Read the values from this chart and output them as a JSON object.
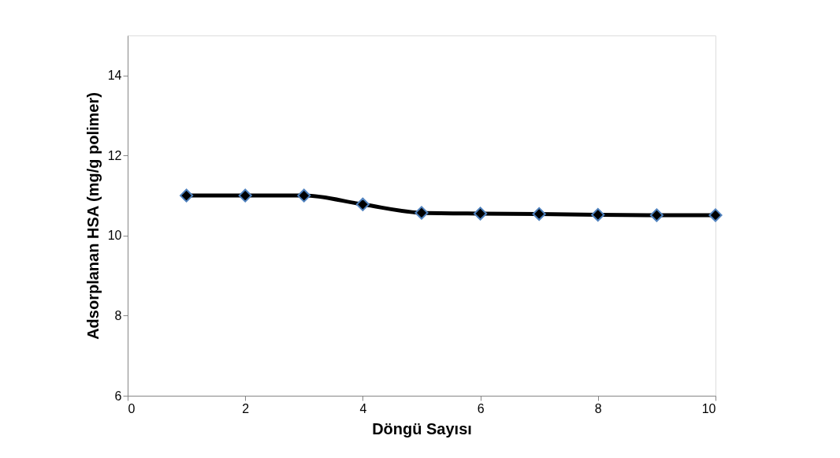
{
  "chart_data": {
    "type": "line",
    "xlabel": "Döngü Sayısı",
    "ylabel": "Adsorplanan  HSA (mg/g polimer)",
    "x": [
      1,
      2,
      3,
      4,
      5,
      6,
      7,
      8,
      9,
      10
    ],
    "series": [
      {
        "color": "#000000",
        "values": [
          11.0,
          11.0,
          11.0,
          10.78,
          10.57,
          10.55,
          10.54,
          10.52,
          10.51,
          10.51
        ]
      }
    ],
    "xlim": [
      0,
      10
    ],
    "xticks": [
      0,
      2,
      4,
      6,
      8,
      10
    ],
    "ylim": [
      6,
      15
    ],
    "yticks": [
      6,
      8,
      10,
      12,
      14
    ],
    "marker": "diamond",
    "line_style": "solid",
    "grid": false
  }
}
